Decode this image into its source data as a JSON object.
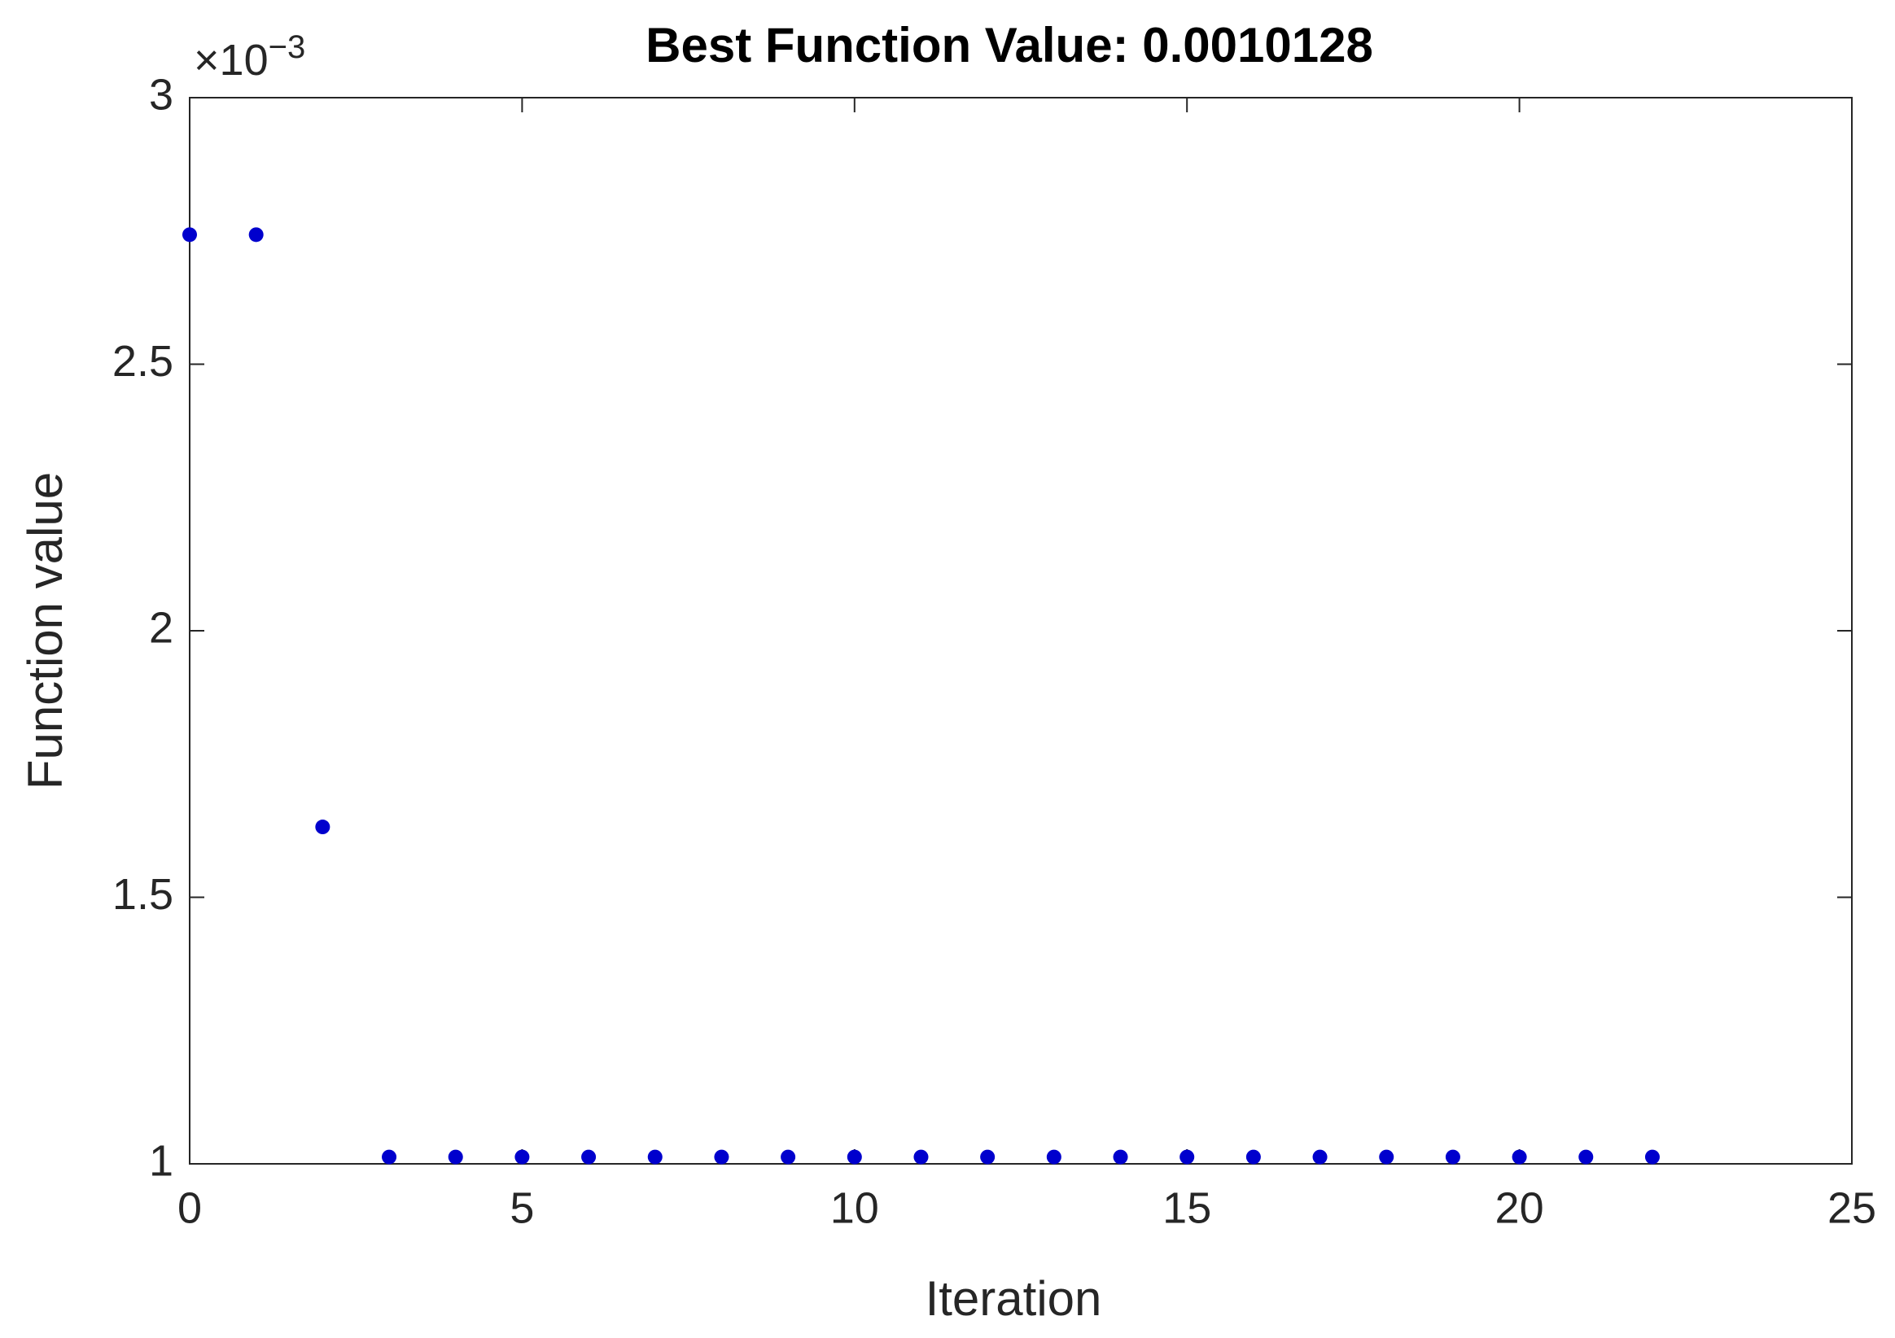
{
  "chart_data": {
    "type": "scatter",
    "title": "Best Function Value: 0.0010128",
    "x_label": "Iteration",
    "y_label": "Function value",
    "y_multiplier": {
      "base": "×10",
      "exponent": "−3"
    },
    "series": [
      {
        "color": "#0000cd",
        "x": [
          0,
          1,
          2,
          3,
          4,
          5,
          6,
          7,
          8,
          9,
          10,
          11,
          12,
          13,
          14,
          15,
          16,
          17,
          18,
          19,
          20,
          21,
          22
        ],
        "values": [
          2.743,
          2.743,
          1.632,
          1.0128,
          1.0128,
          1.0128,
          1.0128,
          1.0128,
          1.0128,
          1.0128,
          1.0128,
          1.0128,
          1.0128,
          1.0128,
          1.0128,
          1.0128,
          1.0128,
          1.0128,
          1.0128,
          1.0128,
          1.0128,
          1.0128,
          1.0128
        ]
      }
    ],
    "xlim": [
      0,
      25
    ],
    "xticks": [
      0,
      5,
      10,
      15,
      20,
      25
    ],
    "ylim": [
      1,
      3
    ],
    "yticks": [
      1,
      1.5,
      2,
      2.5,
      3
    ],
    "grid": false
  }
}
